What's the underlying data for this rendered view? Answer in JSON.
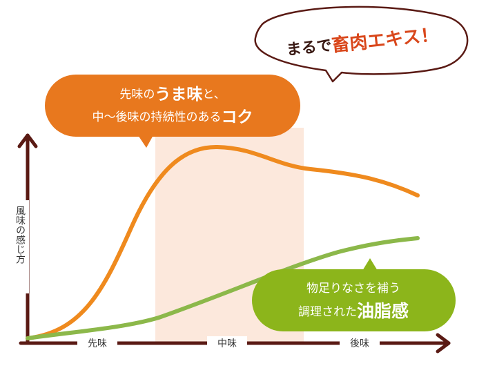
{
  "top_bubble": {
    "lead": "まるで",
    "highlight": "畜肉エキス！"
  },
  "orange_bubble": {
    "line1": [
      "先味の",
      "うま味",
      "と、"
    ],
    "line2": [
      "中～後味の持続性のある",
      "コク"
    ]
  },
  "green_bubble": {
    "line1": "物足りなさを補う",
    "line2": [
      "調理された",
      "油脂感"
    ]
  },
  "y_axis_label": "風味の感じ方",
  "x_axis_labels": [
    "先味",
    "中味",
    "後味"
  ]
}
